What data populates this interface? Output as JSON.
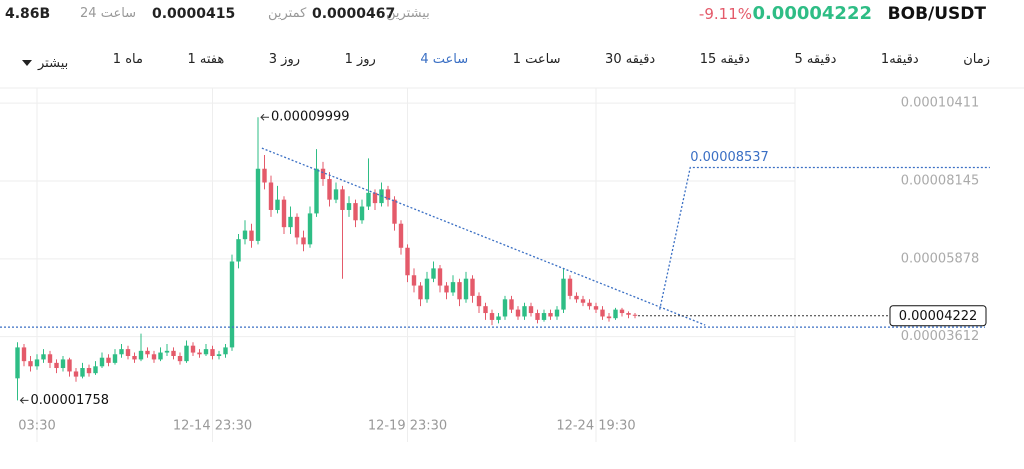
{
  "header": {
    "pair": "BOB/USDT",
    "price": "0.00004222",
    "change": "-9.11%",
    "stats": [
      {
        "label": "بیشترین",
        "value": "0.0000467"
      },
      {
        "label": "کمترین",
        "value": "0.0000415"
      },
      {
        "label": "24 ساعت",
        "value": "4.86B"
      }
    ]
  },
  "tabs": {
    "items": [
      "زمان",
      "1دقیقه",
      "5 دقیقه",
      "15 دقیقه",
      "30 دقیقه",
      "1 ساعت",
      "4 ساعت",
      "1 روز",
      "3 روز",
      "1 هفته",
      "1 ماه",
      "بیشتر"
    ],
    "active": 6
  },
  "chart_data": {
    "type": "candlestick",
    "categories": [
      null,
      null,
      null,
      "03:30",
      null,
      null,
      null,
      null,
      null,
      null,
      null,
      null,
      null,
      null,
      null,
      null,
      null,
      null,
      null,
      null,
      null,
      null,
      null,
      null,
      null,
      null,
      null,
      null,
      null,
      null,
      "12-14 23:30",
      null,
      null,
      null,
      null,
      null,
      null,
      null,
      null,
      null,
      null,
      null,
      null,
      null,
      null,
      null,
      null,
      null,
      null,
      null,
      null,
      null,
      null,
      null,
      null,
      null,
      null,
      null,
      null,
      null,
      "12-19 23:30",
      null,
      null,
      null,
      null,
      null,
      null,
      null,
      null,
      null,
      null,
      null,
      null,
      null,
      null,
      null,
      null,
      null,
      null,
      null,
      null,
      null,
      null,
      null,
      null,
      null,
      null,
      null,
      null,
      "12-24 19:30",
      null,
      null,
      null,
      null,
      null,
      null
    ],
    "open": [
      2.4e-05,
      3.3e-05,
      2.9e-05,
      2.75e-05,
      2.95e-05,
      3.1e-05,
      2.85e-05,
      2.7e-05,
      2.95e-05,
      2.6e-05,
      2.45e-05,
      2.7e-05,
      2.55e-05,
      2.75e-05,
      3e-05,
      2.85e-05,
      3.1e-05,
      3.25e-05,
      3.05e-05,
      2.95e-05,
      3.2e-05,
      3.1e-05,
      2.95e-05,
      3.15e-05,
      3.2e-05,
      3.05e-05,
      2.9e-05,
      3.35e-05,
      3.15e-05,
      3.1e-05,
      3.25e-05,
      3.05e-05,
      3.1e-05,
      3.3e-05,
      5.8e-05,
      6.45e-05,
      6.7e-05,
      6.4e-05,
      8.5e-05,
      8.1e-05,
      7.3e-05,
      7.6e-05,
      6.8e-05,
      7.1e-05,
      6.5e-05,
      6.3e-05,
      7.2e-05,
      8.5e-05,
      8.2e-05,
      7.6e-05,
      7.9e-05,
      7.3e-05,
      7.5e-05,
      7e-05,
      7.4e-05,
      7.8e-05,
      7.5e-05,
      7.9e-05,
      7.6e-05,
      6.9e-05,
      6.2e-05,
      5.4e-05,
      5.1e-05,
      4.7e-05,
      5.3e-05,
      5.6e-05,
      5.1e-05,
      4.9e-05,
      5.2e-05,
      4.7e-05,
      5.3e-05,
      4.8e-05,
      4.5e-05,
      4.3e-05,
      4.1e-05,
      4.2e-05,
      4.7e-05,
      4.4e-05,
      4.2e-05,
      4.5e-05,
      4.3e-05,
      4.1e-05,
      4.3e-05,
      4.2e-05,
      4.4e-05,
      5.3e-05,
      4.8e-05,
      4.7e-05,
      4.6e-05,
      4.5e-05,
      4.4e-05,
      4.2e-05,
      4.15e-05,
      4.4e-05,
      4.3e-05,
      4.25e-05
    ],
    "high": [
      3.45e-05,
      3.4e-05,
      3.05e-05,
      3.1e-05,
      3.25e-05,
      3.2e-05,
      2.95e-05,
      3.05e-05,
      3e-05,
      2.7e-05,
      2.85e-05,
      2.8e-05,
      2.9e-05,
      3.15e-05,
      3.1e-05,
      3.25e-05,
      3.4e-05,
      3.35e-05,
      3.15e-05,
      3.7e-05,
      3.3e-05,
      3.2e-05,
      3.3e-05,
      3.4e-05,
      3.3e-05,
      3.15e-05,
      3.5e-05,
      3.45e-05,
      3.25e-05,
      3.4e-05,
      3.35e-05,
      3.2e-05,
      3.4e-05,
      6e-05,
      6.6e-05,
      7e-05,
      6.9e-05,
      9.999e-05,
      8.9e-05,
      8.3e-05,
      8e-05,
      7.7e-05,
      7.4e-05,
      7.2e-05,
      6.7e-05,
      7.4e-05,
      9.07e-05,
      8.7e-05,
      8.4e-05,
      8.1e-05,
      8e-05,
      7.7e-05,
      7.6e-05,
      7.6e-05,
      8.8e-05,
      7.9e-05,
      8.1e-05,
      8e-05,
      7.7e-05,
      7e-05,
      6.3e-05,
      5.6e-05,
      5.2e-05,
      5.5e-05,
      5.8e-05,
      5.7e-05,
      5.2e-05,
      5.4e-05,
      5.3e-05,
      5.5e-05,
      5.4e-05,
      4.9e-05,
      4.6e-05,
      4.4e-05,
      4.3e-05,
      4.8e-05,
      4.8e-05,
      4.5e-05,
      4.6e-05,
      4.6e-05,
      4.4e-05,
      4.4e-05,
      4.4e-05,
      4.5e-05,
      5.6e-05,
      5.4e-05,
      4.9e-05,
      4.8e-05,
      4.7e-05,
      4.6e-05,
      4.5e-05,
      4.3e-05,
      4.45e-05,
      4.45e-05,
      4.35e-05,
      4.3e-05
    ],
    "low": [
      1.758e-05,
      2.75e-05,
      2.6e-05,
      2.65e-05,
      2.85e-05,
      2.7e-05,
      2.55e-05,
      2.6e-05,
      2.45e-05,
      2.3e-05,
      2.4e-05,
      2.45e-05,
      2.5e-05,
      2.7e-05,
      2.75e-05,
      2.8e-05,
      3e-05,
      2.95e-05,
      2.85e-05,
      2.9e-05,
      3e-05,
      2.85e-05,
      2.9e-05,
      3.05e-05,
      2.95e-05,
      2.8e-05,
      2.85e-05,
      3.05e-05,
      3e-05,
      3.05e-05,
      2.95e-05,
      2.95e-05,
      3e-05,
      3.2e-05,
      5.6e-05,
      6.3e-05,
      6.2e-05,
      6.3e-05,
      7.9e-05,
      7.1e-05,
      7.2e-05,
      6.6e-05,
      6.6e-05,
      6.3e-05,
      6.1e-05,
      6.2e-05,
      7.1e-05,
      8e-05,
      7.4e-05,
      7.5e-05,
      5.3e-05,
      7.1e-05,
      6.8e-05,
      6.9e-05,
      7.3e-05,
      7.3e-05,
      7.4e-05,
      7.4e-05,
      6.7e-05,
      6e-05,
      5.2e-05,
      4.9e-05,
      4.5e-05,
      4.6e-05,
      5.2e-05,
      4.9e-05,
      4.7e-05,
      4.8e-05,
      4.5e-05,
      4.6e-05,
      4.6e-05,
      4.3e-05,
      4.1e-05,
      3.95e-05,
      4e-05,
      4.1e-05,
      4.3e-05,
      4.1e-05,
      4.1e-05,
      4.2e-05,
      4e-05,
      4.05e-05,
      4.1e-05,
      4.1e-05,
      4.3e-05,
      4.7e-05,
      4.6e-05,
      4.5e-05,
      4.4e-05,
      4.3e-05,
      4.1e-05,
      4.05e-05,
      4.1e-05,
      4.2e-05,
      4.15e-05,
      4.15e-05
    ],
    "close": [
      3.3e-05,
      2.9e-05,
      2.75e-05,
      2.95e-05,
      3.1e-05,
      2.85e-05,
      2.7e-05,
      2.95e-05,
      2.6e-05,
      2.45e-05,
      2.7e-05,
      2.55e-05,
      2.75e-05,
      3e-05,
      2.85e-05,
      3.1e-05,
      3.25e-05,
      3.05e-05,
      2.95e-05,
      3.2e-05,
      3.1e-05,
      2.95e-05,
      3.15e-05,
      3.2e-05,
      3.05e-05,
      2.9e-05,
      3.35e-05,
      3.15e-05,
      3.1e-05,
      3.25e-05,
      3.05e-05,
      3.1e-05,
      3.3e-05,
      5.8e-05,
      6.45e-05,
      6.7e-05,
      6.4e-05,
      8.5e-05,
      8.1e-05,
      7.3e-05,
      7.6e-05,
      6.8e-05,
      7.1e-05,
      6.5e-05,
      6.3e-05,
      7.2e-05,
      8.5e-05,
      8.2e-05,
      7.6e-05,
      7.9e-05,
      7.3e-05,
      7.5e-05,
      7e-05,
      7.4e-05,
      7.8e-05,
      7.5e-05,
      7.9e-05,
      7.6e-05,
      6.9e-05,
      6.2e-05,
      5.4e-05,
      5.1e-05,
      4.7e-05,
      5.3e-05,
      5.6e-05,
      5.1e-05,
      4.9e-05,
      5.2e-05,
      4.7e-05,
      5.3e-05,
      4.8e-05,
      4.5e-05,
      4.3e-05,
      4.1e-05,
      4.2e-05,
      4.7e-05,
      4.4e-05,
      4.2e-05,
      4.5e-05,
      4.3e-05,
      4.1e-05,
      4.3e-05,
      4.2e-05,
      4.4e-05,
      5.3e-05,
      4.8e-05,
      4.7e-05,
      4.6e-05,
      4.5e-05,
      4.4e-05,
      4.2e-05,
      4.15e-05,
      4.4e-05,
      4.3e-05,
      4.25e-05,
      4.222e-05
    ],
    "up_color": "#2ebd85",
    "down_color": "#e45a6a",
    "ylim": [
      1.42e-05,
      0.0001085
    ],
    "yticks": [
      0.00010411,
      8.145e-05,
      5.878e-05,
      3.612e-05
    ],
    "grid": true,
    "trendline": {
      "x": [
        37.6,
        105.8
      ],
      "values": [
        9.1e-05,
        3.95e-05
      ]
    },
    "support": 3.89e-05,
    "target": {
      "x": [
        98.8,
        103.5,
        149.6
      ],
      "values": [
        4.4e-05,
        8.537e-05,
        8.537e-05
      ],
      "color": "#3a6fc4"
    }
  }
}
